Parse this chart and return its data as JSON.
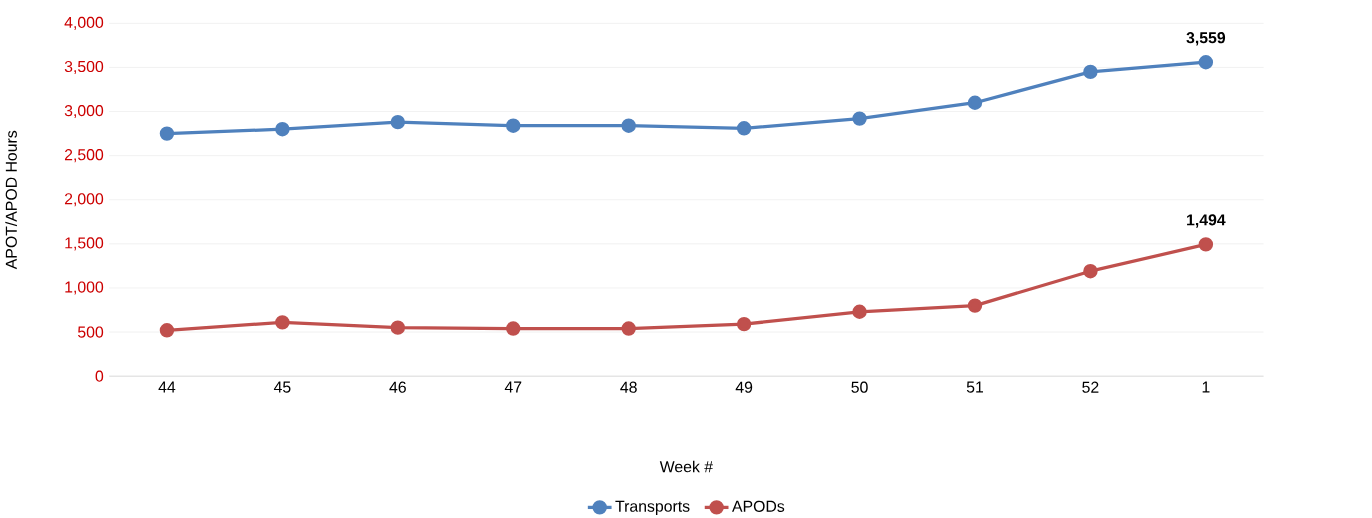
{
  "chart_data": {
    "type": "line",
    "xlabel": "Week #",
    "ylabel": "APOT/APOD Hours",
    "categories": [
      "44",
      "45",
      "46",
      "47",
      "48",
      "49",
      "50",
      "51",
      "52",
      "1"
    ],
    "series": [
      {
        "name": "Transports",
        "color": "#4f81bd",
        "values": [
          2750,
          2800,
          2880,
          2840,
          2840,
          2810,
          2920,
          3100,
          3450,
          3559
        ],
        "value_labels": [
          null,
          null,
          null,
          null,
          null,
          null,
          null,
          null,
          null,
          "3,559"
        ]
      },
      {
        "name": "APODs",
        "color": "#c0504d",
        "values": [
          520,
          610,
          550,
          540,
          540,
          590,
          730,
          800,
          1190,
          1494
        ],
        "value_labels": [
          null,
          null,
          null,
          null,
          null,
          null,
          null,
          null,
          null,
          "1,494"
        ]
      }
    ],
    "ylim": [
      0,
      4000
    ],
    "yticks": [
      {
        "value": 0,
        "label": "0"
      },
      {
        "value": 500,
        "label": "500"
      },
      {
        "value": 1000,
        "label": "1,000"
      },
      {
        "value": 1500,
        "label": "1,500"
      },
      {
        "value": 2000,
        "label": "2,000"
      },
      {
        "value": 2500,
        "label": "2,500"
      },
      {
        "value": 3000,
        "label": "3,000"
      },
      {
        "value": 3500,
        "label": "3,500"
      },
      {
        "value": 4000,
        "label": "4,000"
      }
    ],
    "grid": "y",
    "legend": "bottom",
    "marker": "circle",
    "line_style": "solid"
  }
}
